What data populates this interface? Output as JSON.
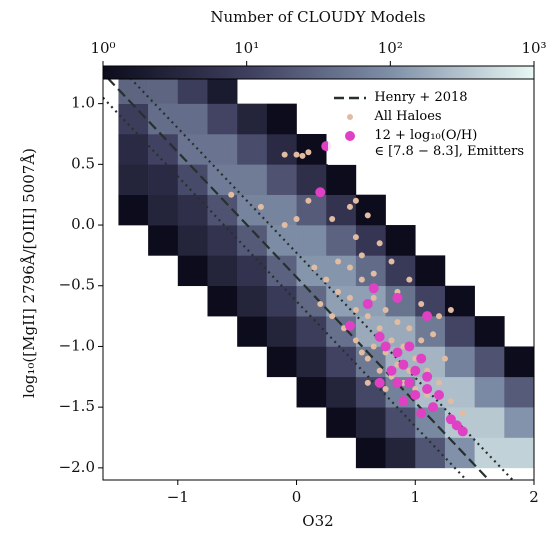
{
  "chart_data": {
    "type": "scatter",
    "x_label": "O32",
    "y_label": "log₁₀([MgII] 2796Å/[OIII] 5007Å)",
    "xlim": [
      -1.63,
      2
    ],
    "ylim": [
      -2.1,
      1.31
    ],
    "xticks": [
      {
        "value": -1,
        "label": "−1"
      },
      0,
      1,
      2
    ],
    "yticks": [
      {
        "value": -2,
        "label": "−2.0"
      },
      {
        "value": -1.5,
        "label": "−1.5"
      },
      {
        "value": -1,
        "label": "−1.0"
      },
      {
        "value": -0.5,
        "label": "−0.5"
      },
      {
        "value": 0,
        "label": "0.0"
      },
      {
        "value": 0.5,
        "label": "0.5"
      },
      {
        "value": 1,
        "label": "1.0"
      }
    ],
    "legend": "upper right",
    "colorbar": {
      "label": "Number of CLOUDY Models",
      "scale": "log",
      "lim": [
        1,
        1000
      ],
      "ticks": [
        {
          "value": 1,
          "label": "10⁰"
        },
        {
          "value": 10,
          "label": "10¹"
        },
        {
          "value": 100,
          "label": "10²"
        },
        {
          "value": 1000,
          "label": "10³"
        }
      ]
    },
    "histogram": {
      "colormap": [
        "#0c0c1c",
        "#3e3e5e",
        "#7f8fa8",
        "#e8f8f4"
      ],
      "x_edges": [
        -1.5,
        -1.25,
        -1,
        -0.75,
        -0.5,
        -0.25,
        0,
        0.25,
        0.5,
        0.75,
        1,
        1.25,
        1.5,
        1.75,
        2
      ],
      "y_edges": [
        -2,
        -1.75,
        -1.5,
        -1.25,
        -1,
        -0.75,
        -0.5,
        -0.25,
        0,
        0.25,
        0.5,
        0.75,
        1,
        1.25
      ],
      "counts": [
        [
          0,
          0,
          0,
          0,
          0,
          0,
          0,
          0,
          1,
          3,
          19,
          105,
          437,
          437
        ],
        [
          0,
          0,
          0,
          0,
          0,
          0,
          0,
          1,
          3,
          15,
          84,
          349,
          350,
          109
        ],
        [
          0,
          0,
          0,
          0,
          0,
          0,
          1,
          3,
          13,
          67,
          279,
          279,
          87,
          23
        ],
        [
          0,
          0,
          0,
          0,
          0,
          1,
          3,
          11,
          54,
          224,
          223,
          70,
          18,
          1
        ],
        [
          0,
          0,
          0,
          0,
          1,
          3,
          9,
          43,
          179,
          179,
          56,
          12,
          1,
          0
        ],
        [
          0,
          0,
          0,
          1,
          3,
          8,
          34,
          143,
          143,
          45,
          11,
          1,
          0,
          0
        ],
        [
          0,
          0,
          1,
          3,
          6,
          28,
          114,
          114,
          36,
          8,
          1,
          0,
          0,
          0
        ],
        [
          0,
          1,
          3,
          6,
          22,
          92,
          91,
          29,
          7,
          1,
          0,
          0,
          0,
          0
        ],
        [
          1,
          3,
          5,
          18,
          73,
          74,
          23,
          6,
          1,
          0,
          0,
          0,
          0,
          0
        ],
        [
          3,
          4,
          14,
          59,
          58,
          18,
          5,
          1,
          0,
          0,
          0,
          0,
          0,
          0
        ],
        [
          4,
          11,
          47,
          47,
          15,
          4,
          1,
          0,
          0,
          0,
          0,
          0,
          0,
          0
        ],
        [
          9,
          38,
          38,
          12,
          3,
          1,
          0,
          0,
          0,
          0,
          0,
          0,
          0,
          0
        ],
        [
          30,
          30,
          9,
          2,
          0,
          0,
          0,
          0,
          0,
          0,
          0,
          0,
          0,
          0
        ]
      ]
    },
    "series": [
      {
        "name": "Henry + 2018",
        "type": "line",
        "style": "dashed",
        "color": "#26302e",
        "x": [
          -1.59,
          1.62
        ],
        "values": [
          1.21,
          -2.1
        ]
      },
      {
        "type": "line",
        "style": "dotted",
        "color": "#26302e",
        "x": [
          -1.4,
          1.82
        ],
        "values": [
          1.21,
          -2.1
        ]
      },
      {
        "type": "line",
        "style": "dotted",
        "color": "#26302e",
        "x": [
          -1.63,
          1.43
        ],
        "values": [
          1.049,
          -2.1
        ]
      },
      {
        "name": "All Haloes",
        "type": "scatter",
        "color": "#e2bca2",
        "x": [
          -0.1,
          0,
          0.05,
          0.1,
          -0.55,
          -0.3,
          -0.1,
          0.1,
          0.3,
          0.45,
          0.5,
          0.6,
          0.55,
          0.7,
          0.8,
          0.95,
          0.25,
          0.35,
          0.45,
          0.5,
          0.6,
          0.65,
          0.7,
          0.75,
          0.8,
          0.85,
          0.9,
          0.95,
          1,
          1.05,
          1.1,
          1.15,
          0.4,
          0.5,
          0.55,
          0.6,
          0.65,
          0.7,
          0.75,
          0.8,
          0.85,
          0.9,
          0.95,
          1,
          1.1,
          1.2,
          1.25,
          1.3,
          1.2,
          0.3,
          0.2,
          0.15,
          0.35,
          0.45,
          0.85,
          1.05,
          1.15,
          1.3,
          0.55,
          0.65,
          0.5,
          0,
          0.75,
          0.6,
          1.4
        ],
        "values": [
          0.58,
          0.58,
          0.57,
          0.6,
          0.25,
          0.15,
          0,
          0.2,
          0.05,
          0.15,
          -0.1,
          0.08,
          -0.25,
          -0.15,
          -0.3,
          -0.45,
          -0.45,
          -0.55,
          -0.6,
          -0.7,
          -0.75,
          -0.6,
          -0.85,
          -0.7,
          -0.95,
          -0.8,
          -1,
          -0.85,
          -1.1,
          -0.95,
          -1.2,
          -0.9,
          -0.85,
          -0.95,
          -1.05,
          -1.1,
          -1,
          -1.2,
          -1.05,
          -1.25,
          -1.15,
          -1.3,
          -1.2,
          -1.35,
          -1.4,
          -1.3,
          -1.1,
          -0.7,
          -0.75,
          -0.75,
          -0.65,
          -0.35,
          -0.3,
          -0.35,
          -0.55,
          -0.65,
          -1.5,
          -1.45,
          -0.45,
          -0.4,
          0.2,
          0.05,
          -1.35,
          -1.3,
          -1.55
        ]
      },
      {
        "name": "12 + log₁₀(O/H)\n∈ [7.8 − 8.3], Emitters",
        "type": "scatter",
        "color": "#e040c4",
        "x": [
          0.2,
          0.25,
          0.65,
          0.6,
          0.85,
          1.1,
          0.45,
          0.7,
          0.75,
          0.85,
          0.9,
          0.95,
          1,
          1.05,
          1.1,
          0.8,
          0.85,
          0.95,
          1,
          1.1,
          0.7,
          1.15,
          1.2,
          1.3,
          1.35,
          1.4,
          0.9,
          1.05
        ],
        "values": [
          0.27,
          0.65,
          -0.52,
          -0.65,
          -0.6,
          -0.75,
          -0.83,
          -0.92,
          -1,
          -1.05,
          -1.15,
          -1,
          -1.2,
          -1.1,
          -1.25,
          -1.2,
          -1.3,
          -1.3,
          -1.4,
          -1.35,
          -1.3,
          -1.5,
          -1.4,
          -1.6,
          -1.65,
          -1.7,
          -1.45,
          -1.55
        ]
      }
    ]
  }
}
